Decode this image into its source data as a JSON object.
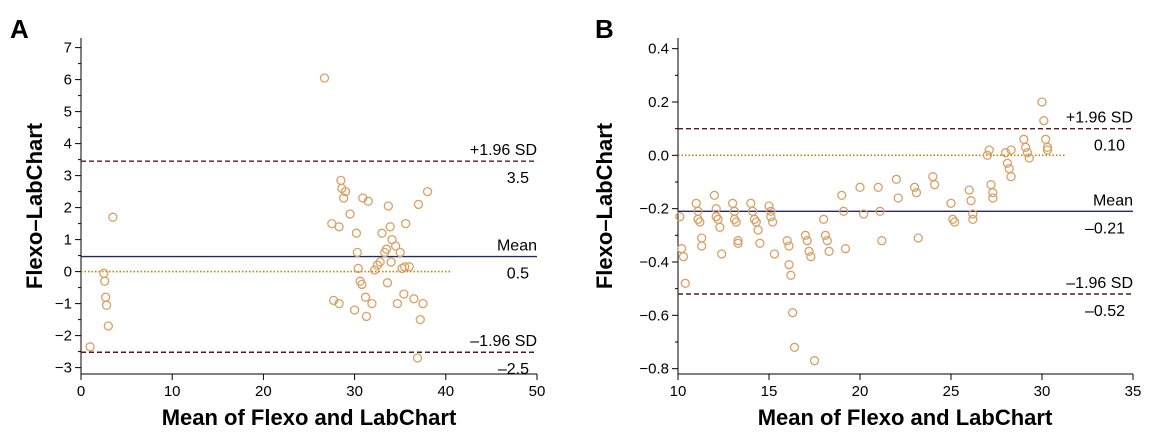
{
  "chart_data": [
    {
      "panel": "A",
      "type": "scatter",
      "xlabel": "Mean of Flexo and LabChart",
      "ylabel": "Flexo–LabChart",
      "xlim": [
        0,
        50
      ],
      "ylim": [
        -3.2,
        7.3
      ],
      "x_ticks": [
        0,
        10,
        20,
        30,
        40,
        50
      ],
      "y_ticks": [
        -3,
        -2,
        -1,
        0,
        1,
        2,
        3,
        4,
        5,
        6,
        7
      ],
      "grid": false,
      "marker_color": "#d9a066",
      "reference_lines": [
        {
          "label": "+1.96 SD",
          "value_label": "3.5",
          "y": 3.45,
          "style": "dashed",
          "color": "#5a1a1a"
        },
        {
          "label": "Mean",
          "value_label": "0.5",
          "y": 0.47,
          "style": "solid",
          "color": "#1f2a6b"
        },
        {
          "label": "–1.96 SD",
          "value_label": "–2.5",
          "y": -2.52,
          "style": "dashed",
          "color": "#5a1a1a"
        },
        {
          "label": "",
          "value_label": "",
          "y": 0,
          "style": "dotted",
          "color": "#b8860b",
          "x_end": 40.5
        }
      ],
      "points": [
        [
          1.0,
          -2.35
        ],
        [
          2.5,
          -0.05
        ],
        [
          2.6,
          -0.3
        ],
        [
          2.7,
          -0.8
        ],
        [
          2.8,
          -1.05
        ],
        [
          3.0,
          -1.7
        ],
        [
          3.5,
          1.7
        ],
        [
          26.7,
          6.05
        ],
        [
          27.5,
          1.5
        ],
        [
          27.7,
          -0.9
        ],
        [
          28.3,
          1.4
        ],
        [
          28.5,
          2.85
        ],
        [
          28.6,
          2.6
        ],
        [
          28.8,
          2.3
        ],
        [
          29.0,
          2.5
        ],
        [
          28.3,
          -1.0
        ],
        [
          29.5,
          1.8
        ],
        [
          30.0,
          -1.2
        ],
        [
          30.2,
          1.2
        ],
        [
          30.3,
          0.6
        ],
        [
          30.4,
          0.1
        ],
        [
          30.6,
          -0.3
        ],
        [
          30.8,
          -0.4
        ],
        [
          30.9,
          2.3
        ],
        [
          31.2,
          -0.8
        ],
        [
          31.3,
          -1.4
        ],
        [
          31.5,
          2.2
        ],
        [
          31.9,
          -1.0
        ],
        [
          32.2,
          0.05
        ],
        [
          32.5,
          0.2
        ],
        [
          32.8,
          0.3
        ],
        [
          33.0,
          1.2
        ],
        [
          33.3,
          0.6
        ],
        [
          33.5,
          0.7
        ],
        [
          33.6,
          -0.35
        ],
        [
          33.7,
          2.05
        ],
        [
          33.9,
          1.4
        ],
        [
          34.0,
          0.3
        ],
        [
          34.1,
          1.0
        ],
        [
          34.5,
          0.8
        ],
        [
          34.7,
          -1.0
        ],
        [
          35.0,
          0.6
        ],
        [
          35.2,
          0.1
        ],
        [
          35.4,
          -0.7
        ],
        [
          35.5,
          0.15
        ],
        [
          35.6,
          1.5
        ],
        [
          36.0,
          0.15
        ],
        [
          36.5,
          -0.85
        ],
        [
          36.9,
          -2.7
        ],
        [
          37.0,
          2.1
        ],
        [
          37.2,
          -1.5
        ],
        [
          37.5,
          -1.0
        ],
        [
          38.0,
          2.5
        ]
      ]
    },
    {
      "panel": "B",
      "type": "scatter",
      "xlabel": "Mean of Flexo and LabChart",
      "ylabel": "Flexo–LabChart",
      "xlim": [
        10,
        35
      ],
      "ylim": [
        -0.82,
        0.44
      ],
      "x_ticks": [
        10,
        15,
        20,
        25,
        30,
        35
      ],
      "y_ticks": [
        -0.8,
        -0.6,
        -0.4,
        -0.2,
        0.0,
        0.2,
        0.4
      ],
      "y_tick_labels": [
        "−0.8",
        "−0.6",
        "−0.4",
        "−0.2",
        "0.0",
        "0.2",
        "0.4"
      ],
      "grid": false,
      "marker_color": "#d9a066",
      "reference_lines": [
        {
          "label": "+1.96 SD",
          "value_label": "0.10",
          "y": 0.1,
          "style": "dashed",
          "color": "#5a1a1a"
        },
        {
          "label": "Mean",
          "value_label": "–0.21",
          "y": -0.21,
          "style": "solid",
          "color": "#1f2a6b"
        },
        {
          "label": "–1.96 SD",
          "value_label": "–0.52",
          "y": -0.52,
          "style": "dashed",
          "color": "#5a1a1a"
        },
        {
          "label": "",
          "value_label": "",
          "y": 0,
          "style": "dotted",
          "color": "#b8860b",
          "x_end": 31.3
        }
      ],
      "points": [
        [
          10.1,
          -0.23
        ],
        [
          10.2,
          -0.35
        ],
        [
          10.3,
          -0.38
        ],
        [
          10.4,
          -0.48
        ],
        [
          11.0,
          -0.18
        ],
        [
          11.1,
          -0.21
        ],
        [
          11.1,
          -0.24
        ],
        [
          11.2,
          -0.25
        ],
        [
          11.3,
          -0.31
        ],
        [
          11.3,
          -0.34
        ],
        [
          12.0,
          -0.15
        ],
        [
          12.1,
          -0.2
        ],
        [
          12.1,
          -0.23
        ],
        [
          12.2,
          -0.24
        ],
        [
          12.3,
          -0.27
        ],
        [
          12.4,
          -0.37
        ],
        [
          13.0,
          -0.18
        ],
        [
          13.1,
          -0.21
        ],
        [
          13.1,
          -0.24
        ],
        [
          13.2,
          -0.25
        ],
        [
          13.3,
          -0.32
        ],
        [
          13.3,
          -0.33
        ],
        [
          14.0,
          -0.18
        ],
        [
          14.1,
          -0.21
        ],
        [
          14.2,
          -0.24
        ],
        [
          14.3,
          -0.25
        ],
        [
          14.4,
          -0.28
        ],
        [
          14.5,
          -0.33
        ],
        [
          15.0,
          -0.19
        ],
        [
          15.1,
          -0.21
        ],
        [
          15.1,
          -0.23
        ],
        [
          15.2,
          -0.25
        ],
        [
          15.3,
          -0.37
        ],
        [
          16.0,
          -0.32
        ],
        [
          16.1,
          -0.34
        ],
        [
          16.1,
          -0.41
        ],
        [
          16.2,
          -0.45
        ],
        [
          16.3,
          -0.59
        ],
        [
          16.4,
          -0.72
        ],
        [
          17.0,
          -0.3
        ],
        [
          17.1,
          -0.32
        ],
        [
          17.2,
          -0.36
        ],
        [
          17.3,
          -0.38
        ],
        [
          17.5,
          -0.77
        ],
        [
          18.0,
          -0.24
        ],
        [
          18.1,
          -0.3
        ],
        [
          18.2,
          -0.32
        ],
        [
          18.3,
          -0.36
        ],
        [
          19.0,
          -0.15
        ],
        [
          19.1,
          -0.21
        ],
        [
          19.2,
          -0.35
        ],
        [
          20.0,
          -0.12
        ],
        [
          20.2,
          -0.22
        ],
        [
          21.0,
          -0.12
        ],
        [
          21.1,
          -0.21
        ],
        [
          21.2,
          -0.32
        ],
        [
          22.0,
          -0.09
        ],
        [
          22.1,
          -0.16
        ],
        [
          23.0,
          -0.12
        ],
        [
          23.1,
          -0.14
        ],
        [
          23.2,
          -0.31
        ],
        [
          24.0,
          -0.08
        ],
        [
          24.1,
          -0.11
        ],
        [
          25.0,
          -0.18
        ],
        [
          25.1,
          -0.24
        ],
        [
          25.2,
          -0.25
        ],
        [
          26.0,
          -0.13
        ],
        [
          26.1,
          -0.17
        ],
        [
          26.2,
          -0.22
        ],
        [
          26.2,
          -0.24
        ],
        [
          27.0,
          0.0
        ],
        [
          27.1,
          0.02
        ],
        [
          27.2,
          -0.11
        ],
        [
          27.3,
          -0.14
        ],
        [
          27.3,
          -0.16
        ],
        [
          28.0,
          0.01
        ],
        [
          28.1,
          -0.03
        ],
        [
          28.2,
          -0.05
        ],
        [
          28.3,
          -0.08
        ],
        [
          28.3,
          0.02
        ],
        [
          29.0,
          0.06
        ],
        [
          29.1,
          0.03
        ],
        [
          29.2,
          0.01
        ],
        [
          29.3,
          -0.01
        ],
        [
          30.0,
          0.2
        ],
        [
          30.1,
          0.13
        ],
        [
          30.2,
          0.06
        ],
        [
          30.3,
          0.03
        ],
        [
          30.3,
          0.02
        ]
      ]
    }
  ]
}
